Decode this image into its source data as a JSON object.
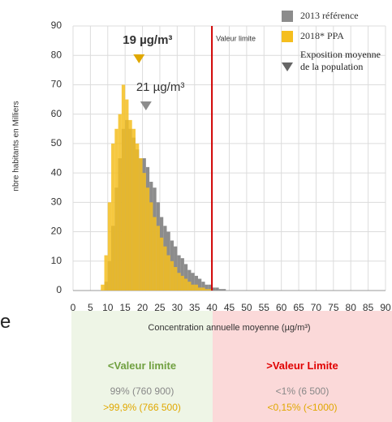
{
  "chart_data": {
    "type": "histogram",
    "ylabel": "nbre habitants en Milliers",
    "xlabel": "Concentration annuelle moyenne (µg/m³)",
    "bins": [
      8,
      9,
      10,
      11,
      12,
      13,
      14,
      15,
      16,
      17,
      18,
      19,
      20,
      21,
      22,
      23,
      24,
      25,
      26,
      27,
      28,
      29,
      30,
      31,
      32,
      33,
      34,
      35,
      36,
      37,
      38,
      39,
      40,
      41,
      42,
      43,
      44,
      45
    ],
    "series": [
      {
        "name": "2013 référence",
        "color": "#8c8c8c",
        "values": [
          0,
          3,
          10,
          22,
          35,
          45,
          55,
          58,
          55,
          52,
          48,
          45,
          45,
          42,
          37,
          35,
          30,
          25,
          22,
          20,
          17,
          15,
          12,
          11,
          9,
          7,
          6,
          5,
          4,
          3,
          2,
          2,
          1,
          1,
          0.5,
          0.5,
          0
        ]
      },
      {
        "name": "2018* PPA",
        "color": "#f5be1e",
        "values": [
          2,
          12,
          30,
          50,
          55,
          60,
          70,
          65,
          58,
          55,
          50,
          45,
          40,
          35,
          30,
          25,
          22,
          18,
          15,
          12,
          10,
          8,
          6,
          5,
          4,
          3,
          2,
          2,
          1,
          1,
          0.5,
          0.5,
          0,
          0,
          0,
          0,
          0
        ]
      }
    ],
    "exposure": [
      {
        "value": 21,
        "label": "21 µg/m³",
        "color": "#8c8c8c"
      },
      {
        "value": 19,
        "label": "19 µg/m³",
        "color": "#e0a800"
      }
    ],
    "exposure_legend": "Exposition moyenne de la population",
    "limit": {
      "value": 40,
      "label": "Valeur limite",
      "color": "#d00000"
    },
    "xlim": [
      0,
      90
    ],
    "xticks": [
      0,
      5,
      10,
      15,
      20,
      25,
      30,
      35,
      40,
      45,
      50,
      55,
      60,
      65,
      70,
      75,
      80,
      85,
      90
    ],
    "ylim": [
      0,
      90
    ],
    "yticks": [
      0,
      10,
      20,
      30,
      40,
      50,
      60,
      70,
      80,
      90
    ],
    "grid": true
  },
  "fragment": "e",
  "summary": {
    "columns": [
      {
        "heading": "<Valeur limite",
        "rows": [
          "99% (760 900)",
          ">99,9% (766 500)"
        ]
      },
      {
        "heading": ">Valeur Limite",
        "rows": [
          "<1% (6 500)",
          "<0,15% (<1000)"
        ]
      }
    ]
  }
}
